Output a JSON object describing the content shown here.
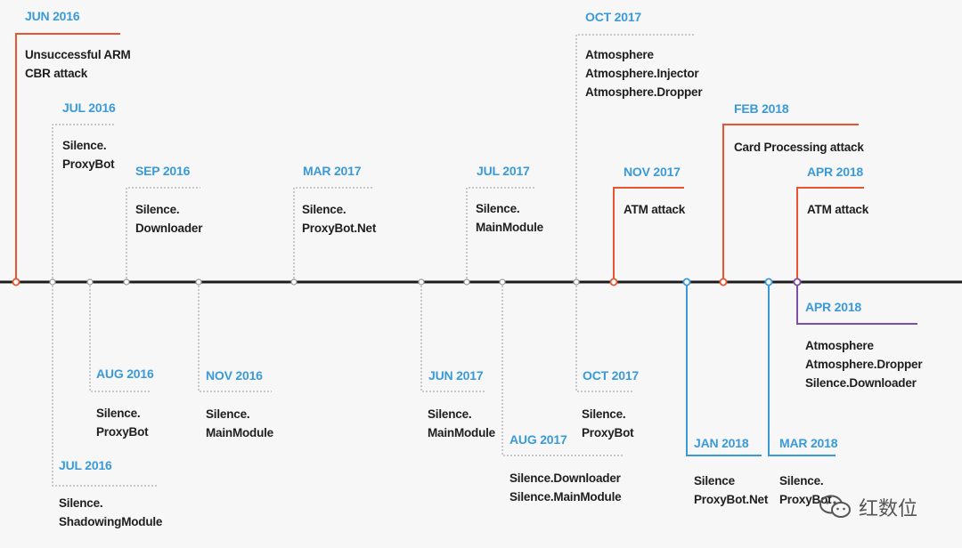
{
  "colors": {
    "axis": "#1c1c1c",
    "dotted": "#9a9a9a",
    "date_text": "#3a9ad9",
    "attack": "#e8542f",
    "blue": "#3a9ad9",
    "purple": "#7a4fa8",
    "body_text": "#1e1e1e",
    "background": "#f7f7f7"
  },
  "watermark": {
    "text": "红数位",
    "icon": "wechat-icon"
  },
  "events": [
    {
      "id": "jun2016",
      "date": "JUN 2016",
      "lines": [
        "Unsuccessful ARM",
        "CBR attack"
      ],
      "style": "attack"
    },
    {
      "id": "jul2016-top",
      "date": "JUL 2016",
      "lines": [
        "Silence.",
        "ProxyBot"
      ],
      "style": "dotted"
    },
    {
      "id": "sep2016",
      "date": "SEP 2016",
      "lines": [
        "Silence.",
        "Downloader"
      ],
      "style": "dotted"
    },
    {
      "id": "mar2017",
      "date": "MAR 2017",
      "lines": [
        "Silence.",
        "ProxyBot.Net"
      ],
      "style": "dotted"
    },
    {
      "id": "jul2017",
      "date": "JUL 2017",
      "lines": [
        "Silence.",
        "MainModule"
      ],
      "style": "dotted"
    },
    {
      "id": "oct2017-top",
      "date": "OCT 2017",
      "lines": [
        "Atmosphere",
        "Atmosphere.Injector",
        "Atmosphere.Dropper"
      ],
      "style": "dotted"
    },
    {
      "id": "nov2017",
      "date": "NOV 2017",
      "lines": [
        "ATM attack"
      ],
      "style": "attack"
    },
    {
      "id": "feb2018",
      "date": "FEB 2018",
      "lines": [
        "Card Processing attack"
      ],
      "style": "attack"
    },
    {
      "id": "apr2018-top",
      "date": "APR 2018",
      "lines": [
        "ATM attack"
      ],
      "style": "attack"
    },
    {
      "id": "aug2016",
      "date": "AUG 2016",
      "lines": [
        "Silence.",
        "ProxyBot"
      ],
      "style": "dotted"
    },
    {
      "id": "nov2016",
      "date": "NOV 2016",
      "lines": [
        "Silence.",
        "MainModule"
      ],
      "style": "dotted"
    },
    {
      "id": "jul2016-bot",
      "date": "JUL 2016",
      "lines": [
        "Silence.",
        "ShadowingModule"
      ],
      "style": "dotted"
    },
    {
      "id": "jun2017",
      "date": "JUN 2017",
      "lines": [
        "Silence.",
        "MainModule"
      ],
      "style": "dotted"
    },
    {
      "id": "aug2017",
      "date": "AUG 2017",
      "lines": [
        "Silence.Downloader",
        "Silence.MainModule"
      ],
      "style": "dotted"
    },
    {
      "id": "oct2017-bot",
      "date": "OCT 2017",
      "lines": [
        "Silence.",
        "ProxyBot"
      ],
      "style": "dotted"
    },
    {
      "id": "jan2018",
      "date": "JAN 2018",
      "lines": [
        "Silence",
        "ProxyBot.Net"
      ],
      "style": "blue"
    },
    {
      "id": "mar2018",
      "date": "MAR 2018",
      "lines": [
        "Silence.",
        "ProxyBot"
      ],
      "style": "blue"
    },
    {
      "id": "apr2018-bot",
      "date": "APR 2018",
      "lines": [
        "Atmosphere",
        "Atmosphere.Dropper",
        "Silence.Downloader"
      ],
      "style": "purple"
    }
  ]
}
